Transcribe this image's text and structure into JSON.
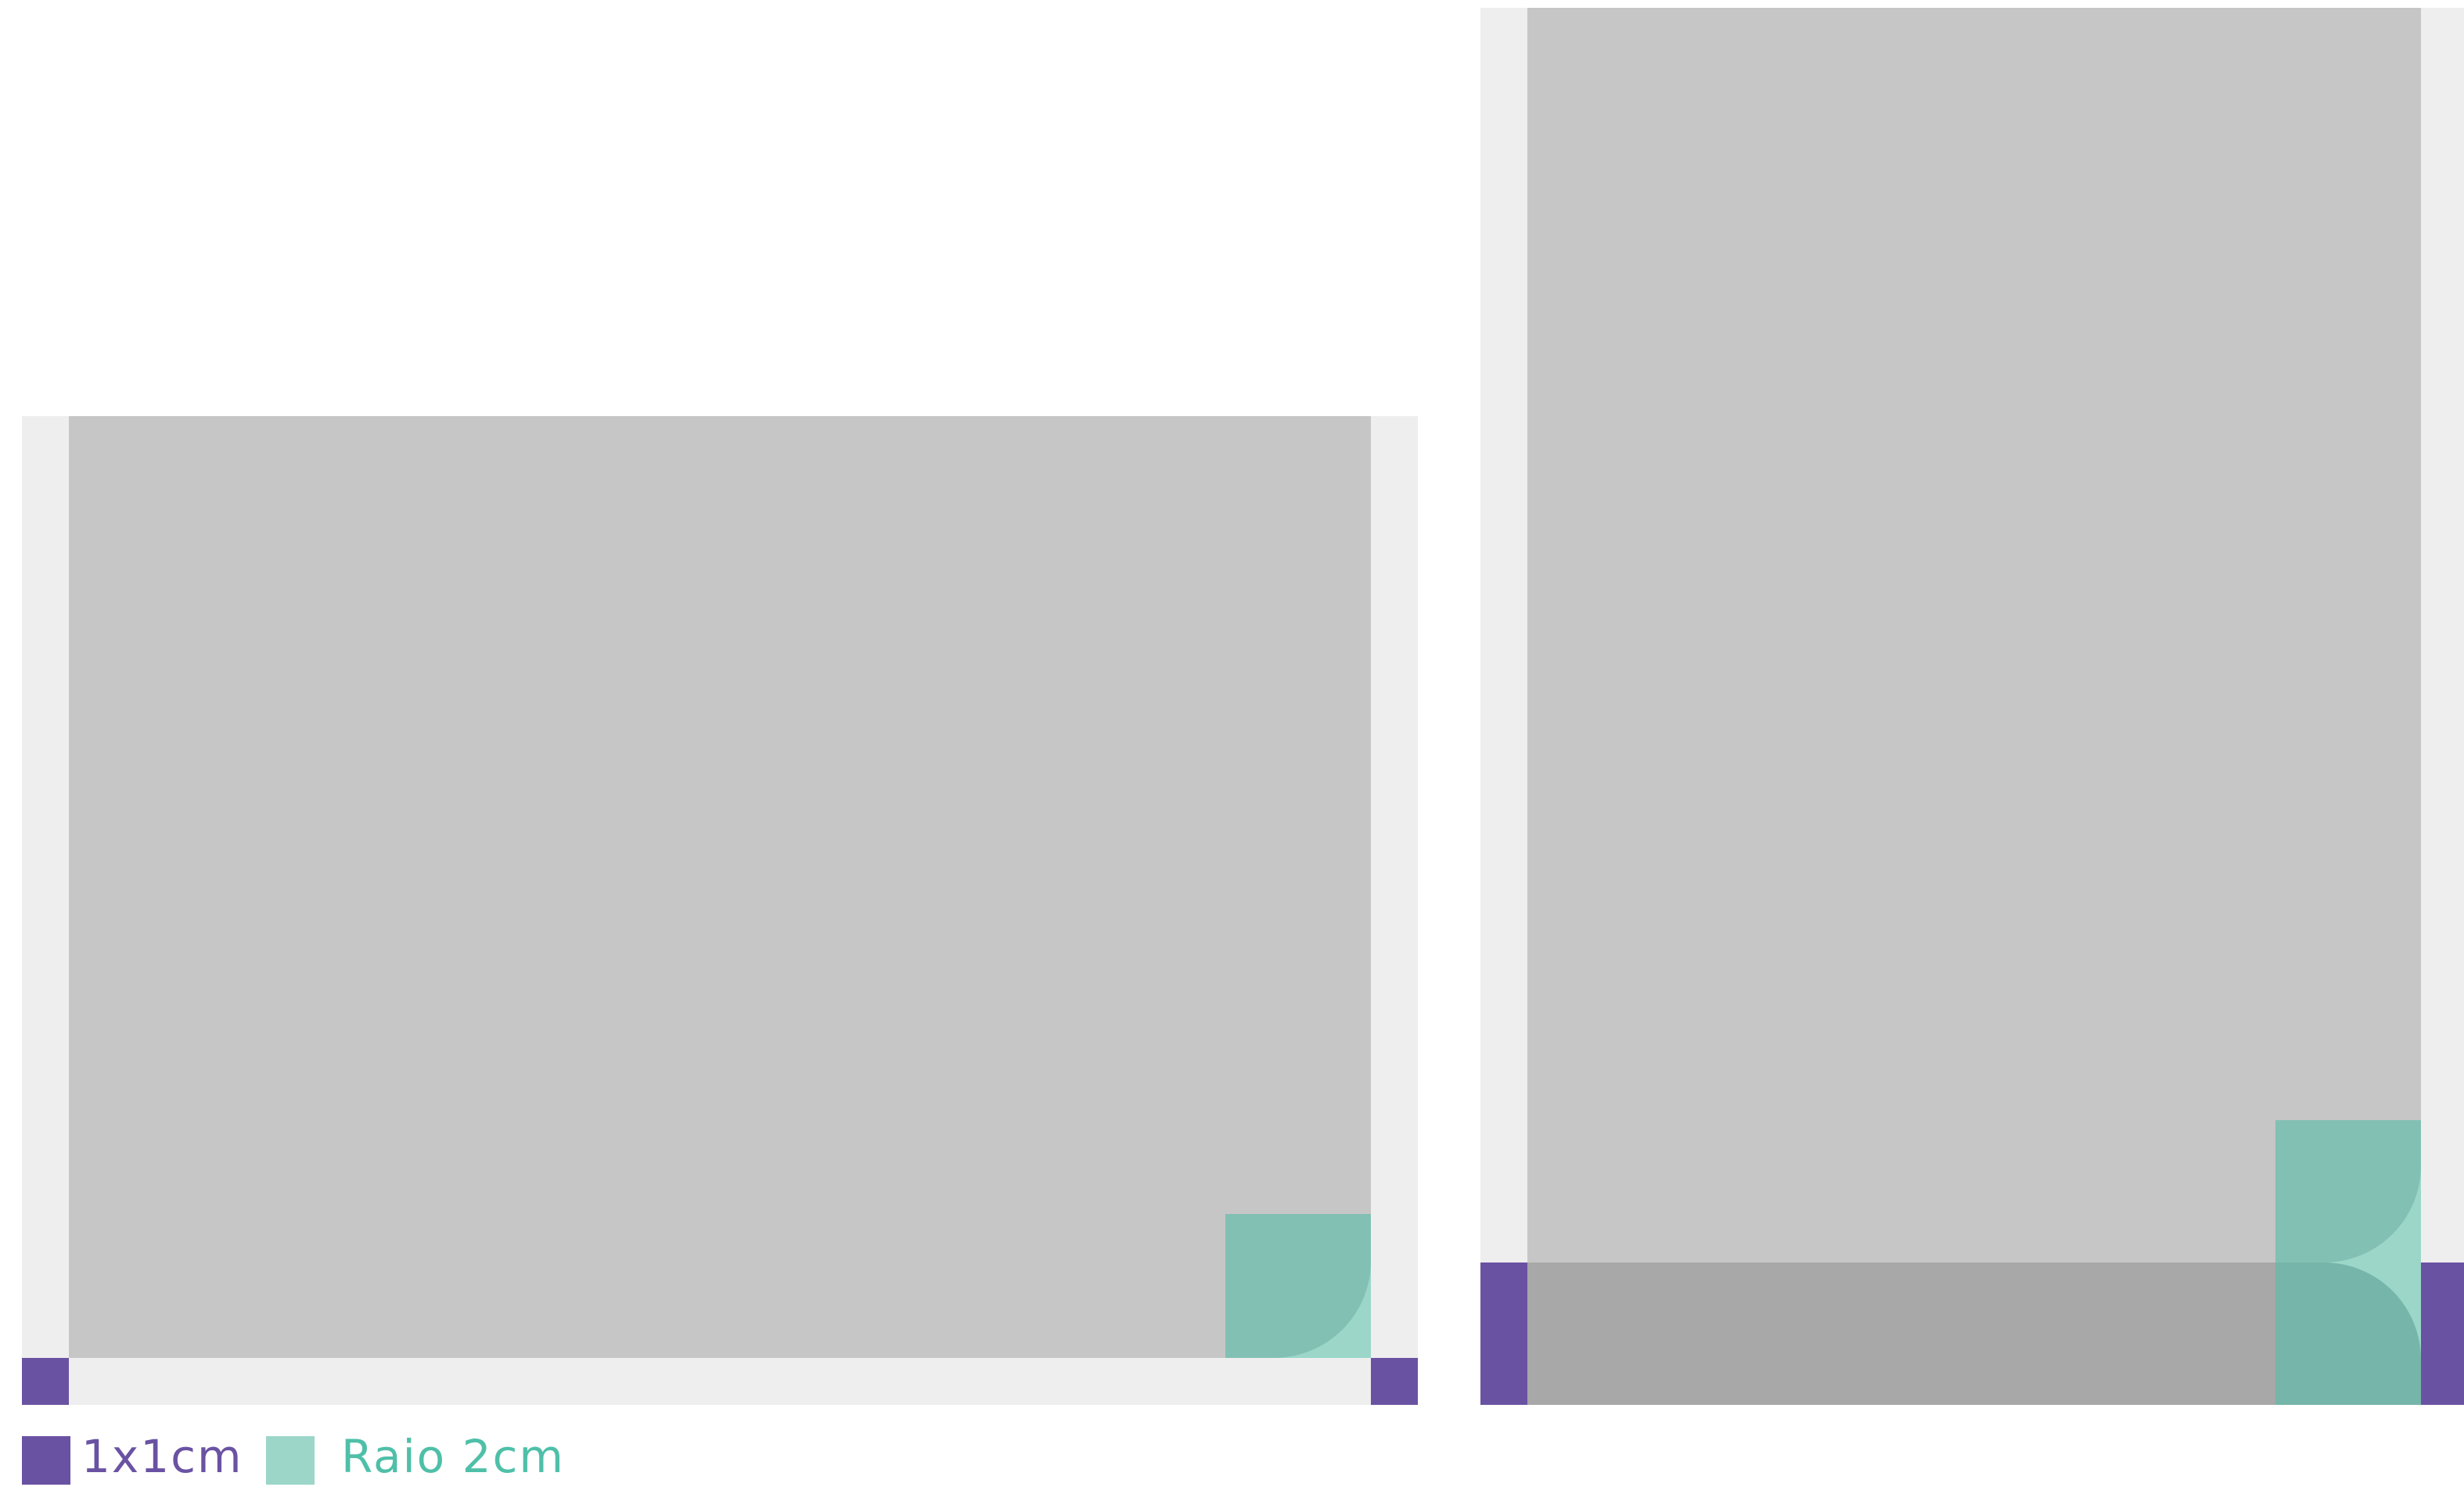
{
  "colors": {
    "margin": "#eeeeee",
    "content": "#c6c6c6",
    "content_dark": "#a8a8a8",
    "unit_square": "#6a52a3",
    "radius_square": "#83c0b4",
    "radius_light": "#9bd6c9",
    "radius_overlap": "#76b5a9"
  },
  "legend": {
    "unit_label": "1x1cm",
    "radius_label": "Raio 2cm",
    "unit_icon": "square-icon",
    "radius_icon": "square-icon"
  }
}
